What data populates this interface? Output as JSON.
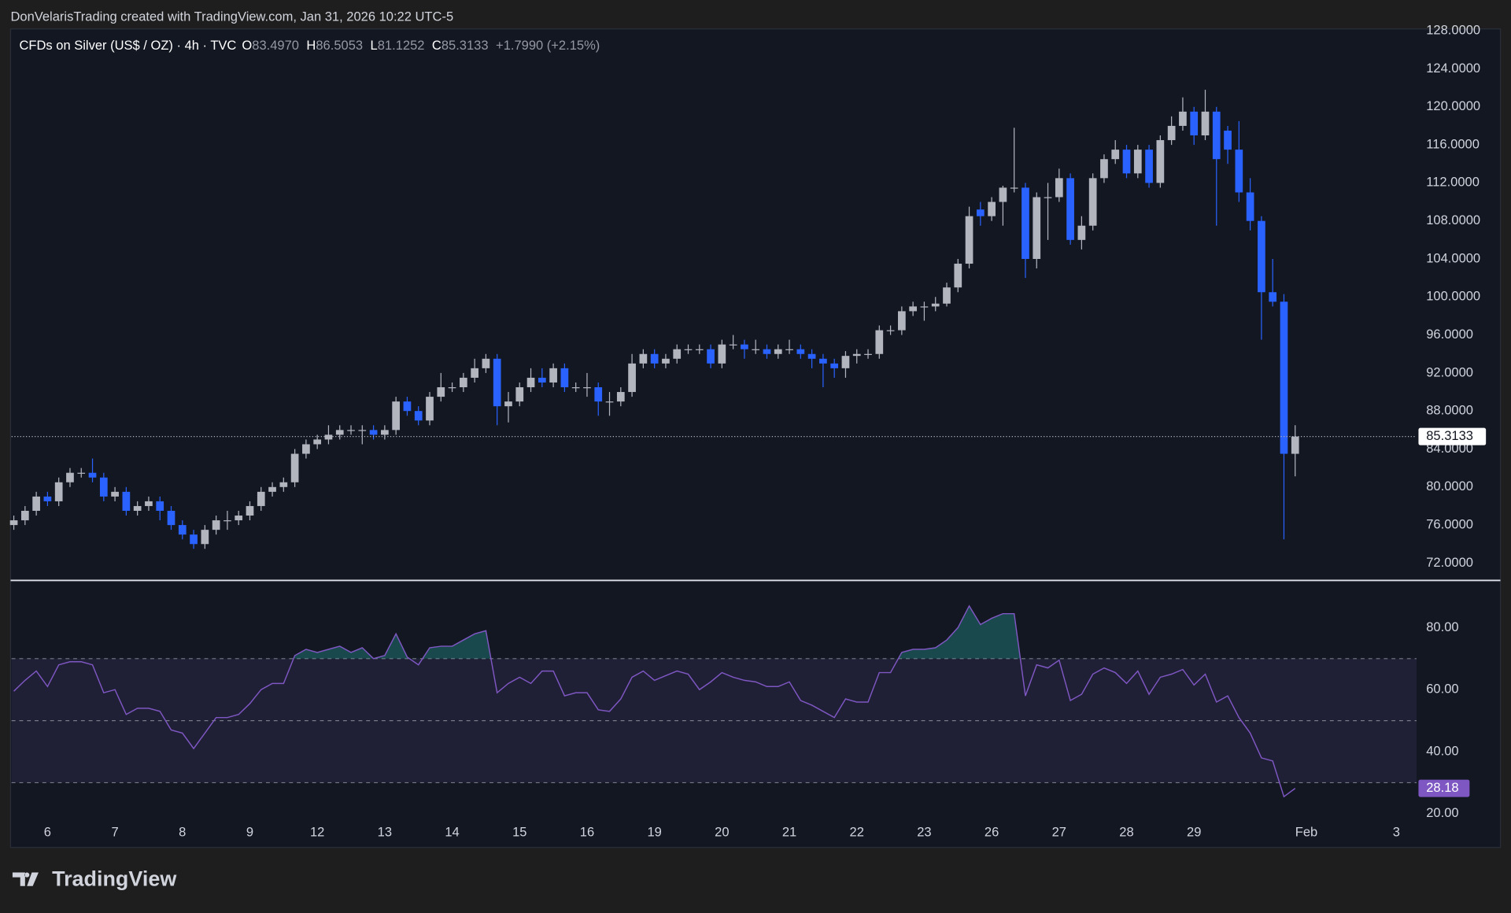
{
  "attribution": "DonVelarisTrading created with TradingView.com, Jan 31, 2026 10:22 UTC-5",
  "logo": "TradingView",
  "header": {
    "symbol": "CFDs on Silver (US$ / OZ) · 4h · TVC",
    "ohlc": [
      {
        "key": "O",
        "value": "83.4970"
      },
      {
        "key": "H",
        "value": "86.5053"
      },
      {
        "key": "L",
        "value": "81.1252"
      },
      {
        "key": "C",
        "value": "85.3133"
      }
    ],
    "change": "+1.7990 (+2.15%)"
  },
  "chart_data": [
    {
      "type": "candlestick",
      "open": [
        76,
        76.5,
        77.5,
        79,
        78.5,
        80.5,
        81.5,
        81.5,
        81,
        79,
        79.5,
        77.5,
        78,
        78.5,
        77.5,
        76,
        75,
        74,
        75.5,
        76.5,
        76.5,
        77,
        78,
        79.5,
        80,
        80.5,
        83.5,
        84.5,
        85,
        85.5,
        86,
        86,
        86,
        85.5,
        86,
        89,
        88,
        87,
        89.5,
        90.5,
        90.5,
        91.5,
        92.5,
        93.5,
        88.5,
        89,
        90.5,
        91.5,
        91,
        92.5,
        90.5,
        90.5,
        90.5,
        89,
        89,
        90,
        93,
        94,
        93,
        93.5,
        94.5,
        94.5,
        94.5,
        93,
        95,
        95,
        94.5,
        94.5,
        94,
        94.5,
        94.5,
        94,
        93.5,
        93,
        92.5,
        93.8,
        94,
        94,
        96.5,
        96.5,
        98.5,
        99,
        99,
        99.3,
        101,
        103.5,
        109.2,
        108.5,
        110,
        111.5,
        111.5,
        104,
        110.5,
        110.5,
        112.5,
        106,
        107.5,
        112.5,
        114.5,
        115.5,
        113,
        115.5,
        112,
        116.5,
        118,
        119.5,
        117,
        119.5,
        117.5,
        115.5,
        111,
        108,
        100.5,
        99.5,
        83.497
      ],
      "high": [
        77,
        78,
        79.5,
        79.5,
        81,
        82,
        82,
        83,
        81.5,
        80,
        80,
        78.5,
        79,
        79,
        78,
        76.5,
        75.5,
        76,
        77,
        77.5,
        77.5,
        78.5,
        80,
        80.5,
        81,
        84,
        85,
        85.5,
        86.5,
        86.5,
        86.5,
        86.5,
        86.5,
        86.5,
        89.5,
        89.5,
        88.5,
        90,
        92,
        91,
        92,
        93.5,
        94,
        94,
        90,
        91,
        92.5,
        92.5,
        93,
        93,
        91,
        92,
        91,
        90,
        90.5,
        94,
        94.5,
        94.5,
        94,
        95,
        95,
        95,
        95,
        95.5,
        96,
        95.5,
        95.5,
        95,
        95,
        95.5,
        95,
        94.5,
        94,
        93.5,
        94.3,
        94.5,
        94.5,
        97,
        97,
        99,
        99.5,
        99.5,
        100,
        101.5,
        104,
        109.5,
        110,
        110.5,
        111.7,
        117.8,
        112,
        111,
        112,
        113.5,
        113,
        108.5,
        113,
        115,
        116.5,
        116,
        116,
        116,
        117,
        119,
        121,
        120,
        121.8,
        120,
        118,
        118.5,
        112.5,
        108.5,
        104,
        100.3,
        86.5053
      ],
      "low": [
        75.5,
        76,
        77,
        78,
        78,
        80,
        81,
        80.5,
        78.5,
        78.5,
        77,
        77,
        77.5,
        76.5,
        75.5,
        74.5,
        73.5,
        73.5,
        75,
        75.5,
        76,
        76.5,
        77.5,
        79,
        79.5,
        80,
        83,
        84,
        84.5,
        85,
        85.5,
        84.5,
        85,
        85,
        85.5,
        87.5,
        86.5,
        86.5,
        89,
        90,
        90,
        91,
        92,
        86.5,
        86.8,
        88.5,
        90,
        90.5,
        90.5,
        90,
        90,
        89.5,
        87.5,
        87.5,
        88.5,
        89.5,
        92.5,
        92.5,
        92.5,
        93,
        94,
        94,
        92.5,
        92.5,
        94.5,
        93.5,
        94,
        93.5,
        93.5,
        94,
        93.5,
        92.5,
        90.5,
        91.5,
        91.5,
        93,
        93.5,
        93.5,
        96,
        96,
        98,
        97.5,
        98.5,
        99,
        100.5,
        103,
        107.5,
        108,
        107.5,
        111,
        102,
        103,
        106,
        110,
        105.5,
        105,
        107,
        112,
        114,
        112.5,
        112.5,
        111.5,
        111.5,
        116,
        117.5,
        116,
        116.5,
        107.5,
        114,
        110,
        107,
        95.5,
        99,
        74.5,
        81.1252
      ],
      "close": [
        76.5,
        77.5,
        79,
        78.5,
        80.5,
        81.5,
        81.5,
        81,
        79,
        79.5,
        77.5,
        78,
        78.5,
        77.5,
        76,
        75,
        74,
        75.5,
        76.5,
        76.5,
        77,
        78,
        79.5,
        80,
        80.5,
        83.5,
        84.5,
        85,
        85.5,
        86,
        86,
        86,
        85.5,
        86,
        89,
        88,
        87,
        89.5,
        90.5,
        90.5,
        91.5,
        92.5,
        93.5,
        88.5,
        89,
        90.5,
        91.5,
        91,
        92.5,
        90.5,
        90.5,
        90.5,
        89,
        89,
        90,
        93,
        94,
        93,
        93.5,
        94.5,
        94.5,
        94.5,
        93,
        95,
        95,
        94.5,
        94.5,
        94,
        94.5,
        94.5,
        94,
        93.5,
        93,
        92.5,
        93.8,
        94,
        94,
        96.5,
        96.5,
        98.5,
        99,
        99,
        99.3,
        101,
        103.5,
        108.5,
        108.5,
        110,
        111.5,
        111.5,
        104,
        110.5,
        110.5,
        112.5,
        106,
        107.5,
        112.5,
        114.5,
        115.5,
        113,
        115.5,
        112,
        116.5,
        118,
        119.5,
        117,
        119.5,
        114.5,
        115.5,
        111,
        108,
        100.5,
        99.5,
        83.5,
        85.3133
      ],
      "up_color": "#b2b5be",
      "down_color": "#2962ff",
      "xlim": [
        -0.2,
        124.8
      ],
      "xticks": [
        {
          "value": 3,
          "label": "6"
        },
        {
          "value": 9,
          "label": "7"
        },
        {
          "value": 15,
          "label": "8"
        },
        {
          "value": 21,
          "label": "9"
        },
        {
          "value": 27,
          "label": "12"
        },
        {
          "value": 33,
          "label": "13"
        },
        {
          "value": 39,
          "label": "14"
        },
        {
          "value": 45,
          "label": "15"
        },
        {
          "value": 51,
          "label": "16"
        },
        {
          "value": 57,
          "label": "19"
        },
        {
          "value": 63,
          "label": "20"
        },
        {
          "value": 69,
          "label": "21"
        },
        {
          "value": 75,
          "label": "22"
        },
        {
          "value": 81,
          "label": "23"
        },
        {
          "value": 87,
          "label": "26"
        },
        {
          "value": 93,
          "label": "27"
        },
        {
          "value": 99,
          "label": "28"
        },
        {
          "value": 105,
          "label": "29"
        },
        {
          "value": 115,
          "label": "Feb"
        },
        {
          "value": 123,
          "label": "3"
        }
      ],
      "ylim": [
        70.28,
        128.1
      ],
      "yticks": [
        {
          "value": 72,
          "label": "72.0000"
        },
        {
          "value": 76,
          "label": "76.0000"
        },
        {
          "value": 80,
          "label": "80.0000"
        },
        {
          "value": 84,
          "label": "84.0000"
        },
        {
          "value": 88,
          "label": "88.0000"
        },
        {
          "value": 92,
          "label": "92.0000"
        },
        {
          "value": 96,
          "label": "96.0000"
        },
        {
          "value": 100,
          "label": "100.0000"
        },
        {
          "value": 104,
          "label": "104.0000"
        },
        {
          "value": 108,
          "label": "108.0000"
        },
        {
          "value": 112,
          "label": "112.0000"
        },
        {
          "value": 116,
          "label": "116.0000"
        },
        {
          "value": 120,
          "label": "120.0000"
        },
        {
          "value": 124,
          "label": "124.0000"
        },
        {
          "value": 128,
          "label": "128.0000"
        }
      ],
      "last_price_line": true
    },
    {
      "type": "line",
      "values": [
        59.5,
        63,
        66,
        61,
        68,
        69,
        69,
        68,
        59,
        60,
        52,
        54,
        54,
        53,
        47,
        46,
        41,
        46,
        51,
        51,
        52,
        55.5,
        60,
        62,
        62,
        71,
        73,
        72,
        73,
        74,
        72,
        73.5,
        70,
        71,
        78,
        70.5,
        68,
        73.5,
        74,
        74,
        76,
        78,
        79,
        59,
        62,
        64,
        62,
        66,
        66,
        58,
        59,
        59,
        53.5,
        53,
        57,
        64,
        66,
        63,
        64.5,
        66,
        65,
        60,
        62.5,
        65.5,
        64,
        63,
        62.5,
        61,
        61,
        62.5,
        56.5,
        55,
        53,
        51,
        57,
        56,
        56,
        65.5,
        65.5,
        72,
        73,
        73,
        73.5,
        76,
        80,
        87,
        81,
        83,
        84.5,
        84.5,
        58,
        68,
        67,
        69.5,
        56.5,
        58.5,
        65,
        67,
        65.5,
        62,
        66,
        58.5,
        64,
        65,
        66.5,
        61.5,
        65,
        56,
        58,
        51,
        46,
        38,
        37,
        25.5,
        28.18
      ],
      "color": "#7e57c2",
      "band_fill": "#7e57c2",
      "overbought_color": "#26a69a",
      "ylim": [
        9.43,
        94.92
      ],
      "yticks": [
        {
          "value": 20,
          "label": "20.00"
        },
        {
          "value": 40,
          "label": "40.00"
        },
        {
          "value": 60,
          "label": "60.00"
        },
        {
          "value": 80,
          "label": "80.00"
        }
      ],
      "bands": [
        30,
        50,
        70
      ]
    }
  ]
}
